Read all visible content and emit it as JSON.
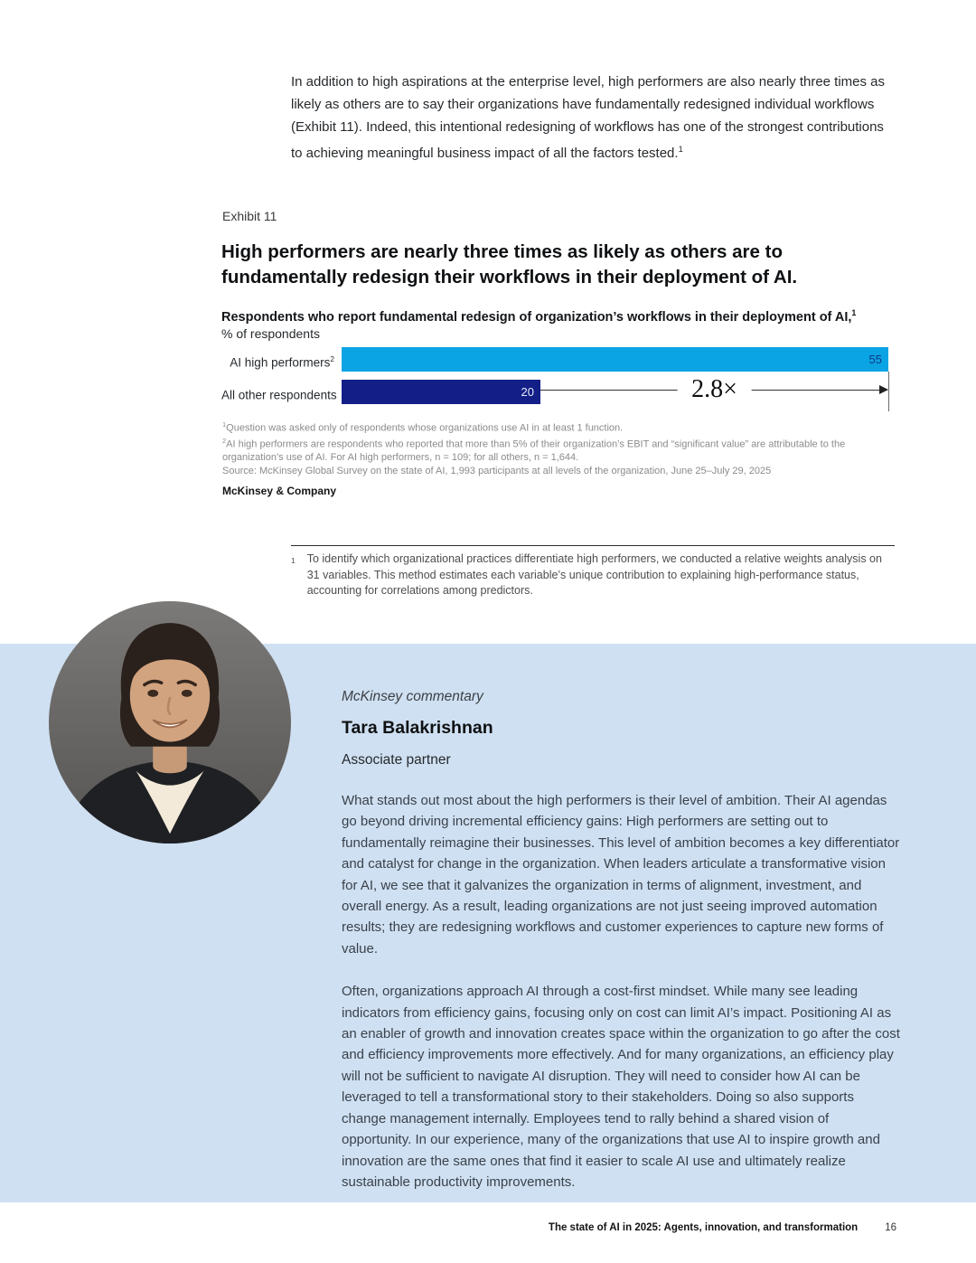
{
  "intro": {
    "text": "In addition to high aspirations at the enterprise level, high performers are also nearly three times as likely as others are to say their organizations have fundamentally redesigned individual workflows (Exhibit 11). Indeed, this intentional redesigning of workflows has one of the strongest contributions to achieving meaningful business impact of all the factors tested.",
    "superscript": "1"
  },
  "exhibit": {
    "label": "Exhibit 11",
    "title": "High performers are nearly three times as likely as others are to fundamentally redesign their workflows in their deployment of AI.",
    "subtitle": "Respondents who report fundamental redesign of organization’s workflows in their deployment of AI,",
    "subtitle_superscript": "1",
    "unit_label": "% of respondents"
  },
  "chart_data": {
    "type": "bar",
    "orientation": "horizontal",
    "categories": [
      "AI high performers",
      "All other respondents"
    ],
    "label_superscripts": [
      "2",
      ""
    ],
    "values": [
      55,
      20
    ],
    "xlim": [
      0,
      55
    ],
    "bar_colors": [
      "#0aa3e3",
      "#131f87"
    ],
    "value_label_colors": [
      "#0d3a86",
      "#e6ecf8"
    ],
    "multiplier_annotation": "2.8×",
    "legend": "none",
    "grid": "off"
  },
  "footnotes": [
    {
      "sup": "1",
      "text": "Question was asked only of respondents whose organizations use AI in at least 1 function."
    },
    {
      "sup": "2",
      "text": "AI high performers are respondents who reported that more than 5% of their organization’s EBIT and “significant value” are attributable to the organization’s use of AI. For AI high performers, n = 109; for all others, n = 1,644."
    },
    {
      "sup": "",
      "text": "Source: McKinsey Global Survey on the state of AI, 1,993 participants at all levels of the organization, June 25–July 29, 2025"
    }
  ],
  "brand": "McKinsey & Company",
  "endnote": {
    "sup": "1",
    "text": "To identify which organizational practices differentiate high performers, we conducted a relative weights analysis on 31 variables. This method estimates each variable’s unique contribution to explaining high-performance status, accounting for correlations among predictors."
  },
  "commentary": {
    "panel_color": "#cfe0f2",
    "kicker": "McKinsey commentary",
    "name": "Tara Balakrishnan",
    "role": "Associate partner",
    "paragraphs": [
      "What stands out most about the high performers is their level of ambition. Their AI agendas go beyond driving incremental efficiency gains: High performers are setting out to fundamentally reimagine their businesses. This level of ambition becomes a key differentiator and catalyst for change in the organization. When leaders articulate a transformative vision for AI, we see that it galvanizes the organization in terms of alignment, investment, and overall energy. As a result, leading organizations are not just seeing improved automation results; they are redesigning workflows and customer experiences to capture new forms of value.",
      "Often, organizations approach AI through a cost-first mindset. While many see leading indicators from efficiency gains, focusing only on cost can limit AI’s impact. Positioning AI as an enabler of growth and innovation creates space within the organization to go after the cost and efficiency improvements more effectively. And for many organizations, an efficiency play will not be sufficient to navigate AI disruption. They will need to consider how AI can be leveraged to tell a transformational story to their stakeholders. Doing so also supports change management internally. Employees tend to rally behind a shared vision of opportunity. In our experience, many of the organizations that use AI to inspire growth and innovation are the same ones that find it easier to scale AI use and ultimately realize sustainable productivity improvements."
    ]
  },
  "footer": {
    "title": "The state of AI in 2025: Agents, innovation, and transformation",
    "page": "16"
  }
}
